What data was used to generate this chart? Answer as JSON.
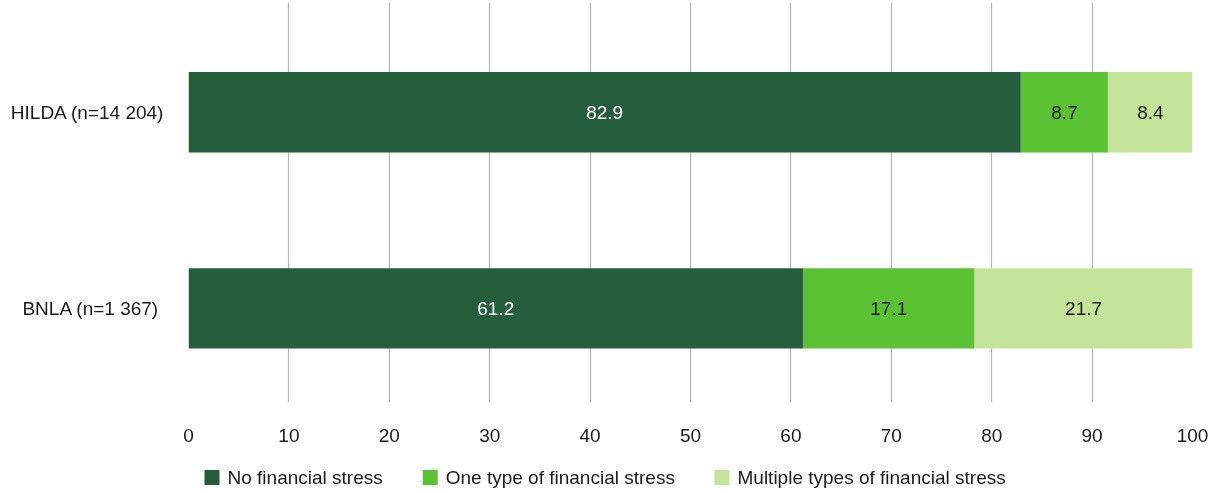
{
  "chart_data": {
    "type": "bar",
    "orientation": "horizontal",
    "stacked": true,
    "categories": [
      "HILDA (n=14 204)",
      "BNLA  (n=1 367)"
    ],
    "series": [
      {
        "name": "No financial stress",
        "color": "#255e3c",
        "values": [
          82.9,
          61.2
        ]
      },
      {
        "name": "One type of financial stress",
        "color": "#5bc234",
        "values": [
          8.7,
          17.1
        ]
      },
      {
        "name": "Multiple types of financial stress",
        "color": "#c4e599",
        "values": [
          8.4,
          21.7
        ]
      }
    ],
    "xlim": [
      0,
      100
    ],
    "xticks": [
      0,
      10,
      20,
      30,
      40,
      50,
      60,
      70,
      80,
      90,
      100
    ],
    "grid": "x",
    "legend": "bottom",
    "data_labels": true
  }
}
